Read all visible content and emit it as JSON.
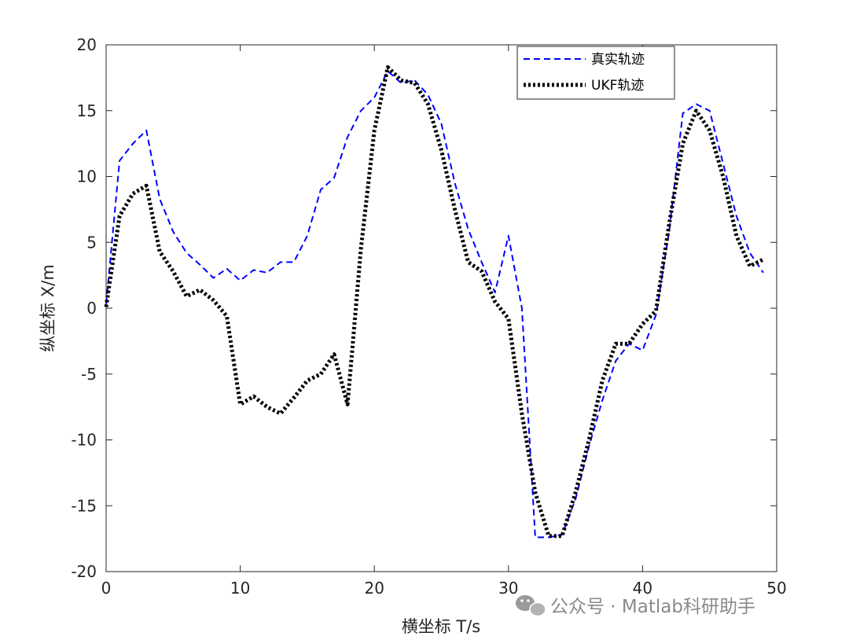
{
  "chart_data": {
    "type": "line",
    "title": "",
    "xlabel": "横坐标 T/s",
    "ylabel": "纵坐标 X/m",
    "xlim": [
      0,
      50
    ],
    "ylim": [
      -20,
      20
    ],
    "xticks": [
      "0",
      "10",
      "20",
      "30",
      "40",
      "50"
    ],
    "yticks": [
      "-20",
      "-15",
      "-10",
      "-5",
      "0",
      "5",
      "10",
      "15",
      "20"
    ],
    "grid": false,
    "legend_position": "top-right",
    "series": [
      {
        "name": "真实轨迹",
        "color": "#0000ff",
        "style": "dashed",
        "x": [
          0,
          1,
          2,
          3,
          4,
          5,
          6,
          7,
          8,
          9,
          10,
          11,
          12,
          13,
          14,
          15,
          16,
          17,
          18,
          19,
          20,
          21,
          22,
          23,
          24,
          25,
          26,
          27,
          28,
          29,
          30,
          31,
          32,
          33,
          34,
          35,
          36,
          37,
          38,
          39,
          40,
          41,
          42,
          43,
          44,
          45,
          46,
          47,
          48,
          49
        ],
        "y": [
          0.3,
          11.2,
          12.5,
          13.5,
          8.3,
          5.8,
          4.2,
          3.3,
          2.3,
          3.0,
          2.1,
          2.9,
          2.7,
          3.5,
          3.5,
          5.5,
          9.0,
          9.9,
          13.0,
          15.0,
          16.0,
          18.0,
          17.1,
          17.3,
          16.2,
          14.0,
          9.5,
          6.0,
          3.5,
          1.2,
          5.5,
          0.0,
          -17.4,
          -17.4,
          -17.2,
          -14.5,
          -10.5,
          -7.0,
          -4.0,
          -2.7,
          -3.2,
          -0.5,
          6.0,
          14.8,
          15.5,
          15.0,
          11.0,
          7.0,
          4.2,
          2.7
        ]
      },
      {
        "name": "UKF轨迹",
        "color": "#000000",
        "style": "dotted",
        "x": [
          0,
          1,
          2,
          3,
          4,
          5,
          6,
          7,
          8,
          9,
          10,
          11,
          12,
          13,
          14,
          15,
          16,
          17,
          18,
          19,
          20,
          21,
          22,
          23,
          24,
          25,
          26,
          27,
          28,
          29,
          30,
          31,
          32,
          33,
          34,
          35,
          36,
          37,
          38,
          39,
          40,
          41,
          42,
          43,
          44,
          45,
          46,
          47,
          48,
          49
        ],
        "y": [
          0.1,
          7.0,
          8.7,
          9.3,
          4.3,
          2.8,
          0.9,
          1.4,
          0.6,
          -0.6,
          -7.3,
          -6.7,
          -7.5,
          -8.0,
          -6.8,
          -5.5,
          -5.0,
          -3.5,
          -7.3,
          4.5,
          13.5,
          18.3,
          17.3,
          17.1,
          15.5,
          12.0,
          7.5,
          3.5,
          2.8,
          0.5,
          -0.8,
          -8.0,
          -14.0,
          -17.3,
          -17.3,
          -14.0,
          -10.0,
          -5.5,
          -2.7,
          -2.7,
          -1.2,
          -0.2,
          6.5,
          12.5,
          15.0,
          13.5,
          10.0,
          5.5,
          3.2,
          3.7
        ]
      }
    ]
  },
  "watermark": {
    "icon": "wechat-icon",
    "text": "公众号 · Matlab科研助手"
  }
}
